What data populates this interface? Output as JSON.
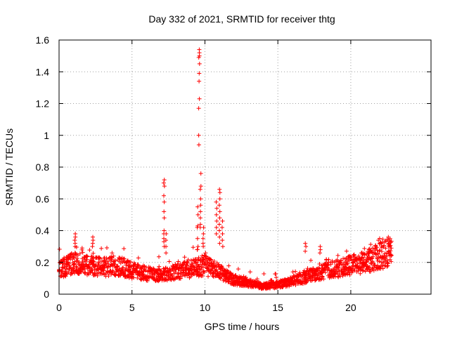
{
  "chart_data": {
    "type": "scatter",
    "title": "Day 332 of 2021, SRMTID for receiver thtg",
    "xlabel": "GPS time / hours",
    "ylabel": "SRMTID / TECUs",
    "xlim": [
      0,
      25.5
    ],
    "ylim": [
      0,
      1.6
    ],
    "xticks": [
      0,
      5,
      10,
      15,
      20
    ],
    "xtick_labels": [
      "0",
      "5",
      "10",
      "15",
      "20"
    ],
    "yticks": [
      0,
      0.2,
      0.4,
      0.6,
      0.8,
      1.0,
      1.2,
      1.4,
      1.6
    ],
    "ytick_labels": [
      "0",
      "0.2",
      "0.4",
      "0.6",
      "0.8",
      "1",
      "1.2",
      "1.4",
      "1.6"
    ],
    "grid": true,
    "marker": "plus",
    "color": "#ff0000",
    "x_range_of_data": [
      0,
      22.8
    ],
    "envelope": {
      "description": "baseline level vs hour",
      "x": [
        0,
        1,
        2,
        3,
        4,
        5,
        6,
        7,
        8,
        9,
        10,
        11,
        12,
        13,
        14,
        15,
        16,
        17,
        18,
        19,
        20,
        21,
        22,
        22.8
      ],
      "y": [
        0.15,
        0.2,
        0.18,
        0.17,
        0.18,
        0.15,
        0.13,
        0.12,
        0.14,
        0.16,
        0.18,
        0.14,
        0.09,
        0.07,
        0.05,
        0.06,
        0.08,
        0.11,
        0.14,
        0.16,
        0.18,
        0.2,
        0.24,
        0.26
      ]
    },
    "spikes": [
      {
        "x": 1.1,
        "values": [
          0.3,
          0.32,
          0.34,
          0.36,
          0.38
        ]
      },
      {
        "x": 2.3,
        "values": [
          0.3,
          0.32,
          0.34,
          0.36
        ]
      },
      {
        "x": 7.2,
        "values": [
          0.72,
          0.7,
          0.68,
          0.62,
          0.58,
          0.52,
          0.48,
          0.4,
          0.38,
          0.35,
          0.33,
          0.3
        ]
      },
      {
        "x": 7.35,
        "values": [
          0.38,
          0.34,
          0.3,
          0.26
        ]
      },
      {
        "x": 9.6,
        "values": [
          1.54,
          1.52,
          1.5,
          1.49,
          1.45,
          1.39,
          1.34,
          1.23,
          1.17,
          1.0,
          0.94
        ]
      },
      {
        "x": 9.7,
        "values": [
          0.76,
          0.68,
          0.66,
          0.6,
          0.56,
          0.52,
          0.48,
          0.44,
          0.42
        ]
      },
      {
        "x": 9.5,
        "values": [
          0.55,
          0.5,
          0.43,
          0.42,
          0.35,
          0.3,
          0.28
        ]
      },
      {
        "x": 9.9,
        "values": [
          0.42,
          0.38,
          0.35,
          0.32,
          0.3
        ]
      },
      {
        "x": 10.8,
        "values": [
          0.58,
          0.54,
          0.5,
          0.46,
          0.42,
          0.38
        ]
      },
      {
        "x": 11.0,
        "values": [
          0.66,
          0.64,
          0.6,
          0.56,
          0.52,
          0.48,
          0.44,
          0.4,
          0.36,
          0.32
        ]
      },
      {
        "x": 11.2,
        "values": [
          0.46,
          0.42,
          0.38,
          0.34,
          0.3
        ]
      },
      {
        "x": 16.9,
        "values": [
          0.32,
          0.3,
          0.27
        ]
      },
      {
        "x": 17.9,
        "values": [
          0.3,
          0.28,
          0.26
        ]
      },
      {
        "x": 22.6,
        "values": [
          0.36,
          0.34,
          0.32,
          0.3
        ]
      }
    ]
  }
}
